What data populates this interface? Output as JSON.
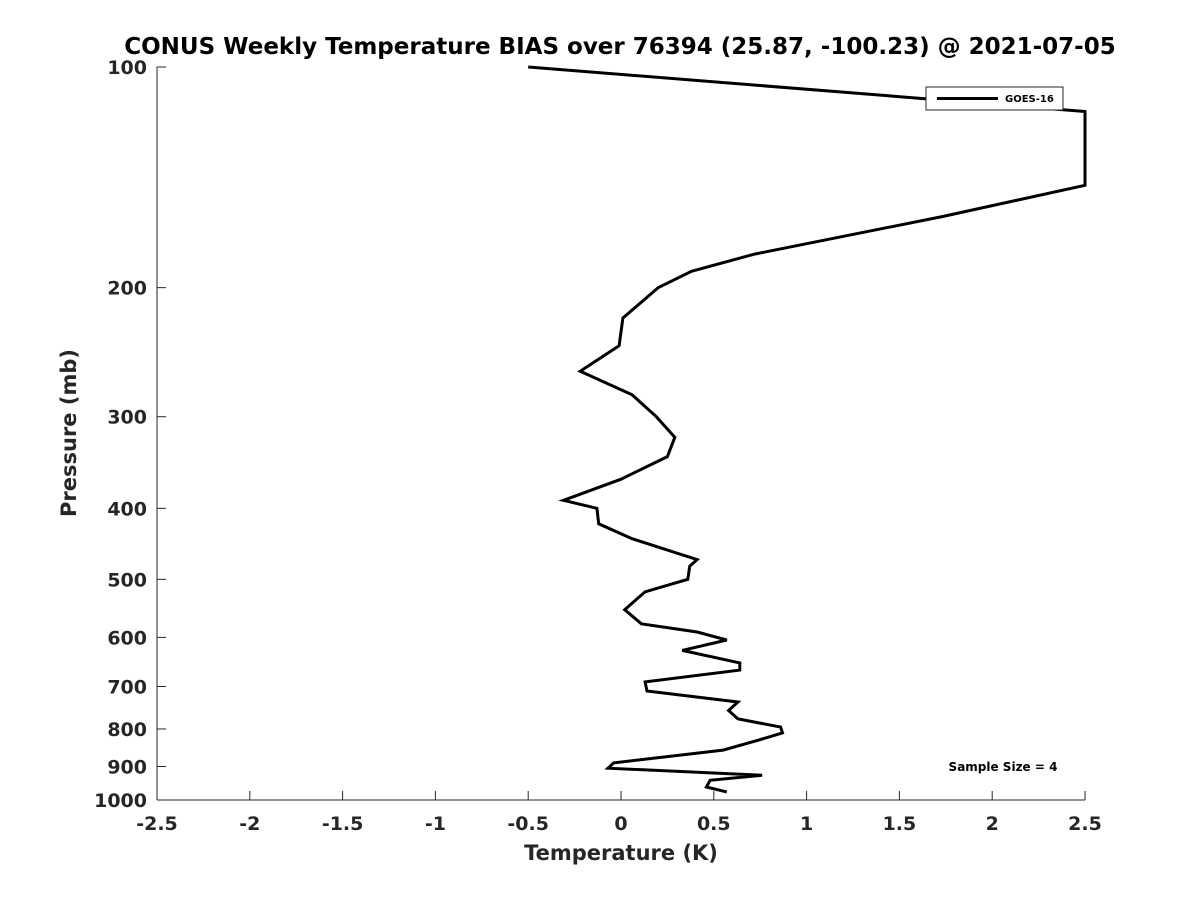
{
  "chart_data": {
    "type": "line",
    "title": "CONUS Weekly Temperature BIAS over 76394 (25.87, -100.23) @ 2021-07-05",
    "xlabel": "Temperature (K)",
    "ylabel": "Pressure (mb)",
    "xlim": [
      -2.5,
      2.5
    ],
    "ylim": [
      1000,
      100
    ],
    "y_scale": "log",
    "y_reversed": true,
    "grid": false,
    "legend_position": "top-right",
    "x_ticks": [
      "-2.5",
      "-2",
      "-1.5",
      "-1",
      "-0.5",
      "0",
      "0.5",
      "1",
      "1.5",
      "2",
      "2.5"
    ],
    "y_ticks": [
      "100",
      "200",
      "300",
      "400",
      "500",
      "600",
      "700",
      "800",
      "900",
      "1000"
    ],
    "series": [
      {
        "name": "GOES-16",
        "color": "#000000",
        "points": [
          {
            "x": -0.5,
            "y": 100
          },
          {
            "x": 2.5,
            "y": 115
          },
          {
            "x": 2.5,
            "y": 145
          },
          {
            "x": 1.73,
            "y": 160
          },
          {
            "x": 0.72,
            "y": 180
          },
          {
            "x": 0.38,
            "y": 190
          },
          {
            "x": 0.2,
            "y": 200
          },
          {
            "x": 0.01,
            "y": 220
          },
          {
            "x": -0.01,
            "y": 240
          },
          {
            "x": -0.22,
            "y": 260
          },
          {
            "x": 0.06,
            "y": 280
          },
          {
            "x": 0.19,
            "y": 300
          },
          {
            "x": 0.29,
            "y": 320
          },
          {
            "x": 0.25,
            "y": 340
          },
          {
            "x": 0.0,
            "y": 365
          },
          {
            "x": -0.31,
            "y": 390
          },
          {
            "x": -0.13,
            "y": 400
          },
          {
            "x": -0.12,
            "y": 420
          },
          {
            "x": 0.06,
            "y": 440
          },
          {
            "x": 0.41,
            "y": 470
          },
          {
            "x": 0.37,
            "y": 480
          },
          {
            "x": 0.36,
            "y": 500
          },
          {
            "x": 0.13,
            "y": 520
          },
          {
            "x": 0.02,
            "y": 550
          },
          {
            "x": 0.11,
            "y": 575
          },
          {
            "x": 0.41,
            "y": 590
          },
          {
            "x": 0.57,
            "y": 605
          },
          {
            "x": 0.33,
            "y": 625
          },
          {
            "x": 0.64,
            "y": 650
          },
          {
            "x": 0.64,
            "y": 665
          },
          {
            "x": 0.13,
            "y": 690
          },
          {
            "x": 0.14,
            "y": 710
          },
          {
            "x": 0.63,
            "y": 735
          },
          {
            "x": 0.58,
            "y": 755
          },
          {
            "x": 0.63,
            "y": 775
          },
          {
            "x": 0.86,
            "y": 795
          },
          {
            "x": 0.87,
            "y": 810
          },
          {
            "x": 0.73,
            "y": 830
          },
          {
            "x": 0.55,
            "y": 855
          },
          {
            "x": -0.04,
            "y": 890
          },
          {
            "x": -0.07,
            "y": 905
          },
          {
            "x": 0.76,
            "y": 925
          },
          {
            "x": 0.48,
            "y": 940
          },
          {
            "x": 0.46,
            "y": 960
          },
          {
            "x": 0.57,
            "y": 975
          }
        ]
      }
    ],
    "annotation": "Sample Size = 4"
  }
}
